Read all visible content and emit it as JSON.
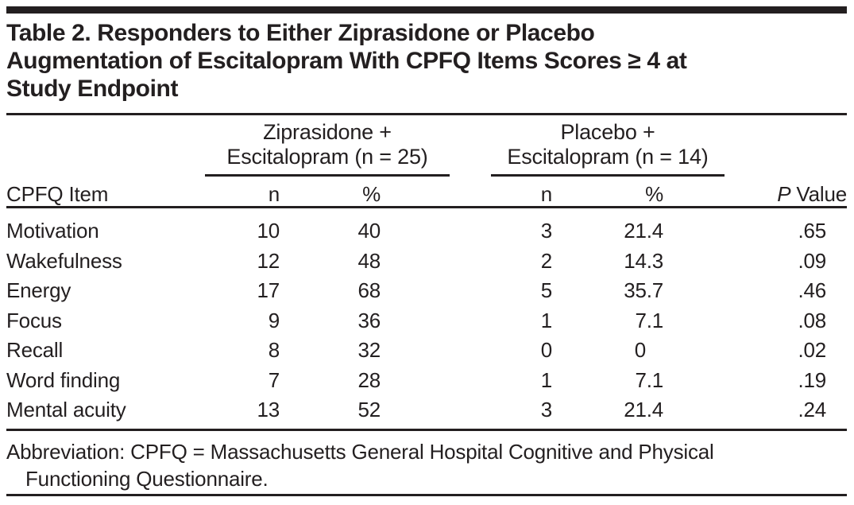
{
  "title_lines": [
    "Table 2. Responders to Either Ziprasidone or Placebo",
    "Augmentation of Escitalopram With CPFQ Items Scores ≥ 4 at",
    "Study Endpoint"
  ],
  "table": {
    "row_header": "CPFQ Item",
    "groups": [
      {
        "line1": "Ziprasidone +",
        "line2": "Escitalopram (n = 25)",
        "col_n": "n",
        "col_pct": "%"
      },
      {
        "line1": "Placebo +",
        "line2": "Escitalopram (n = 14)",
        "col_n": "n",
        "col_pct": "%"
      }
    ],
    "p_header": {
      "italic": "P",
      "rest": "Value"
    },
    "rows": [
      {
        "item": "Motivation",
        "zip_n": "10",
        "zip_pct": "40",
        "pla_n": "3",
        "pla_pct": "21.4",
        "p": ".65"
      },
      {
        "item": "Wakefulness",
        "zip_n": "12",
        "zip_pct": "48",
        "pla_n": "2",
        "pla_pct": "14.3",
        "p": ".09"
      },
      {
        "item": "Energy",
        "zip_n": "17",
        "zip_pct": "68",
        "pla_n": "5",
        "pla_pct": "35.7",
        "p": ".46"
      },
      {
        "item": "Focus",
        "zip_n": "9",
        "zip_pct": "36",
        "pla_n": "1",
        "pla_pct": "7.1",
        "p": ".08"
      },
      {
        "item": "Recall",
        "zip_n": "8",
        "zip_pct": "32",
        "pla_n": "0",
        "pla_pct": "0",
        "p": ".02"
      },
      {
        "item": "Word finding",
        "zip_n": "7",
        "zip_pct": "28",
        "pla_n": "1",
        "pla_pct": "7.1",
        "p": ".19"
      },
      {
        "item": "Mental acuity",
        "zip_n": "13",
        "zip_pct": "52",
        "pla_n": "3",
        "pla_pct": "21.4",
        "p": ".24"
      }
    ]
  },
  "footnote": "Abbreviation: CPFQ = Massachusetts General Hospital Cognitive and Physical Functioning Questionnaire.",
  "colors": {
    "ink": "#231f20",
    "background": "#ffffff"
  }
}
